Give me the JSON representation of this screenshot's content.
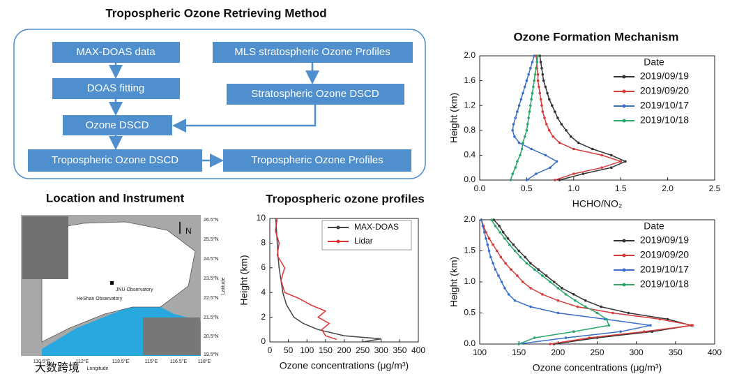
{
  "flowchart": {
    "title": "Tropospheric Ozone Retrieving Method",
    "nodes": [
      "MAX-DOAS data",
      "DOAS fitting",
      "Ozone DSCD",
      "Tropospheric Ozone DSCD",
      "Tropospheric Ozone Profiles",
      "MLS stratospheric Ozone Profiles",
      "Stratospheric Ozone DSCD"
    ]
  },
  "location": {
    "title": "Location and Instrument",
    "latitudes": [
      "26.5°N",
      "25.5°N",
      "24.5°N",
      "23.5°N",
      "22.5°N",
      "21.5°N",
      "20.5°N",
      "19.5°N"
    ],
    "longitudes": [
      "110.5°E",
      "112°E",
      "113.5°E",
      "115°E",
      "116.5°E",
      "118°E"
    ],
    "axis_labels": [
      "Latitude",
      "Longitude"
    ],
    "north": "N",
    "sites": [
      "JNU Observatory",
      "HeShan Observatory"
    ]
  },
  "watermark": "大数跨境",
  "chart_data": [
    {
      "type": "line",
      "title": "Ozone Formation Mechanism",
      "x_label": "HCHO/NO₂",
      "y_label": "Height (km)",
      "xlim": [
        0,
        2.5
      ],
      "xticks": [
        {
          "value": 0,
          "label": "0.0"
        },
        0.5,
        {
          "value": 1,
          "label": "1.0"
        },
        1.5,
        {
          "value": 2,
          "label": "2.0"
        },
        2.5
      ],
      "ylim": [
        0,
        2
      ],
      "yticks": [
        {
          "value": 0,
          "label": "0.0"
        },
        0.4,
        0.8,
        1.2,
        1.6,
        {
          "value": 2,
          "label": "2.0"
        }
      ],
      "legend_title": "Date",
      "heights": [
        0,
        0.1,
        0.2,
        0.3,
        0.4,
        0.5,
        0.6,
        0.7,
        0.8,
        0.9,
        1,
        1.1,
        1.2,
        1.3,
        1.4,
        1.5,
        1.6,
        1.7,
        1.8,
        1.9,
        2
      ],
      "series": [
        {
          "name": "2019/09/19",
          "color": "#333333",
          "values": [
            0.85,
            1.1,
            1.4,
            1.55,
            1.4,
            1.2,
            1.05,
            0.97,
            0.92,
            0.87,
            0.83,
            0.8,
            0.77,
            0.74,
            0.72,
            0.7,
            0.68,
            0.67,
            0.66,
            0.65,
            0.64
          ]
        },
        {
          "name": "2019/09/20",
          "color": "#d63b3b",
          "values": [
            0.8,
            1,
            1.3,
            1.5,
            1.3,
            1,
            0.85,
            0.78,
            0.74,
            0.71,
            0.69,
            0.67,
            0.66,
            0.65,
            0.64,
            0.63,
            0.62,
            0.62,
            0.61,
            0.61,
            0.6
          ]
        },
        {
          "name": "2019/10/17",
          "color": "#3a6fc9",
          "values": [
            0.5,
            0.6,
            0.75,
            0.82,
            0.7,
            0.55,
            0.42,
            0.37,
            0.35,
            0.36,
            0.38,
            0.4,
            0.42,
            0.44,
            0.46,
            0.48,
            0.5,
            0.52,
            0.54,
            0.56,
            0.58
          ]
        },
        {
          "name": "2019/10/18",
          "color": "#2aa66a",
          "values": [
            0.33,
            0.35,
            0.38,
            0.4,
            0.43,
            0.45,
            0.46,
            0.48,
            0.5,
            0.51,
            0.52,
            0.53,
            0.54,
            0.55,
            0.56,
            0.57,
            0.58,
            0.59,
            0.6,
            0.61,
            0.62
          ]
        }
      ]
    },
    {
      "type": "line",
      "title": "Tropospheric ozone profiles",
      "x_label": "Ozone concentrations (μg/m³)",
      "y_label": "Height (km)",
      "xlim": [
        0,
        400
      ],
      "xticks": [
        0,
        50,
        100,
        150,
        200,
        250,
        300,
        350,
        400
      ],
      "ylim": [
        0,
        10
      ],
      "yticks": [
        0,
        2,
        4,
        6,
        8,
        10
      ],
      "series": [
        {
          "name": "MAX-DOAS",
          "color": "#444444",
          "heights": [
            0,
            0.25,
            0.5,
            1,
            1.5,
            2,
            3,
            4,
            5,
            6,
            7,
            8,
            9,
            10
          ],
          "values": [
            250,
            300,
            200,
            130,
            90,
            65,
            45,
            35,
            30,
            25,
            22,
            20,
            18,
            16
          ]
        },
        {
          "name": "Lidar",
          "color": "#e03030",
          "heights": [
            0.2,
            0.5,
            1,
            1.5,
            2,
            2.5,
            3,
            3.5,
            4,
            5,
            6,
            7,
            8,
            9,
            10
          ],
          "values": [
            180,
            150,
            140,
            160,
            130,
            150,
            110,
            80,
            40,
            30,
            40,
            20,
            25,
            15,
            20
          ]
        }
      ]
    },
    {
      "type": "line",
      "x_label": "Ozone concentrations (μg/m³)",
      "y_label": "Height (km)",
      "xlim": [
        100,
        400
      ],
      "xticks": [
        100,
        150,
        200,
        250,
        300,
        350,
        400
      ],
      "ylim": [
        0,
        2
      ],
      "yticks": [
        {
          "value": 0,
          "label": "0.0"
        },
        0.5,
        {
          "value": 1,
          "label": "1.0"
        },
        1.5,
        {
          "value": 2,
          "label": "2.0"
        }
      ],
      "legend_title": "Date",
      "heights": [
        0,
        0.1,
        0.2,
        0.3,
        0.4,
        0.5,
        0.6,
        0.7,
        0.8,
        0.9,
        1,
        1.1,
        1.2,
        1.3,
        1.4,
        1.5,
        1.6,
        1.7,
        1.8,
        1.9,
        2
      ],
      "series": [
        {
          "name": "2019/09/19",
          "color": "#333333",
          "values": [
            195,
            250,
            320,
            370,
            340,
            290,
            255,
            235,
            220,
            205,
            195,
            185,
            175,
            165,
            158,
            150,
            143,
            136,
            130,
            125,
            118
          ]
        },
        {
          "name": "2019/09/20",
          "color": "#d63b3b",
          "values": [
            190,
            240,
            310,
            372,
            330,
            270,
            225,
            200,
            180,
            165,
            155,
            148,
            140,
            133,
            127,
            122,
            117,
            112,
            108,
            105,
            102
          ]
        },
        {
          "name": "2019/10/17",
          "color": "#3a6fc9",
          "values": [
            150,
            210,
            280,
            318,
            260,
            200,
            165,
            145,
            137,
            132,
            128,
            124,
            120,
            117,
            114,
            112,
            110,
            108,
            106,
            104,
            102
          ]
        },
        {
          "name": "2019/10/18",
          "color": "#2aa66a",
          "values": [
            150,
            170,
            220,
            265,
            262,
            250,
            235,
            222,
            210,
            200,
            190,
            180,
            170,
            160,
            152,
            145,
            138,
            132,
            126,
            120,
            115
          ]
        }
      ]
    }
  ]
}
